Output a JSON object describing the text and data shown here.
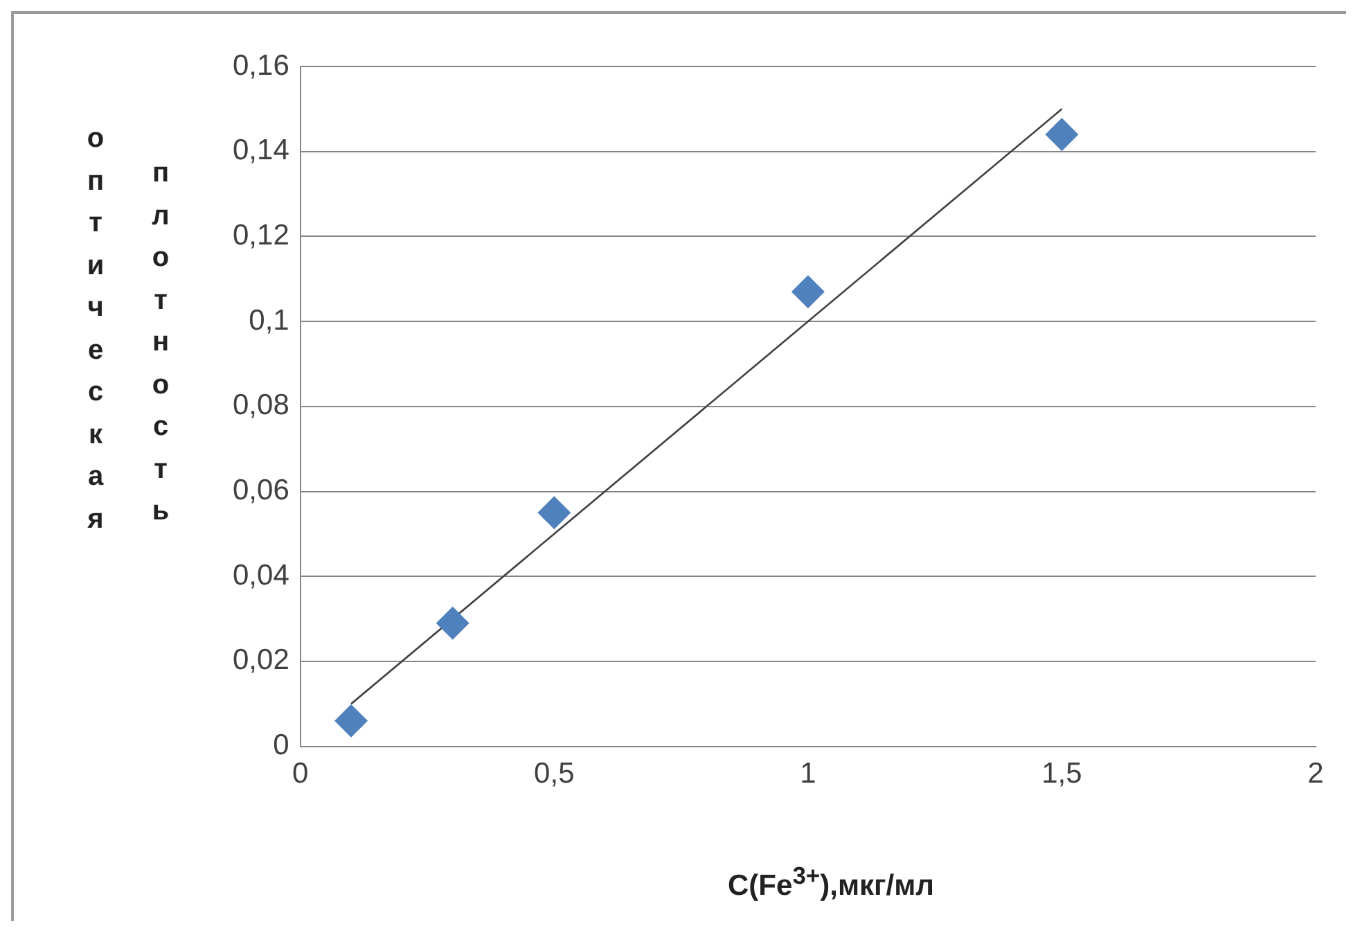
{
  "chart_data": {
    "type": "scatter",
    "xlabel": "C(Fe$^{3+}$),мкг/мл",
    "ylabel": "оптическая плотность",
    "xlim": [
      0,
      2
    ],
    "xticks": [
      0,
      {
        "value": 0.5,
        "label": "0,5"
      },
      1,
      {
        "value": 1.5,
        "label": "1,5"
      },
      2
    ],
    "ylim": [
      0,
      0.16
    ],
    "yticks": [
      0,
      {
        "value": 0.02,
        "label": "0,02"
      },
      {
        "value": 0.04,
        "label": "0,04"
      },
      {
        "value": 0.06,
        "label": "0,06"
      },
      {
        "value": 0.08,
        "label": "0,08"
      },
      {
        "value": 0.1,
        "label": "0,1"
      },
      {
        "value": 0.12,
        "label": "0,12"
      },
      {
        "value": 0.14,
        "label": "0,14"
      },
      {
        "value": 0.16,
        "label": "0,16"
      }
    ],
    "grid": "y",
    "legend": false,
    "marker": "diamond",
    "series": [
      {
        "color": "#4f81bd",
        "x": [
          0.1,
          0.3,
          0.5,
          1,
          1.5
        ],
        "values": [
          0.006,
          0.029,
          0.055,
          0.107,
          0.144
        ]
      },
      {
        "type": "line",
        "color": "#404040",
        "marker": "none",
        "x": [
          0.1,
          1.5
        ],
        "values": [
          0.01,
          0.15
        ]
      }
    ]
  }
}
